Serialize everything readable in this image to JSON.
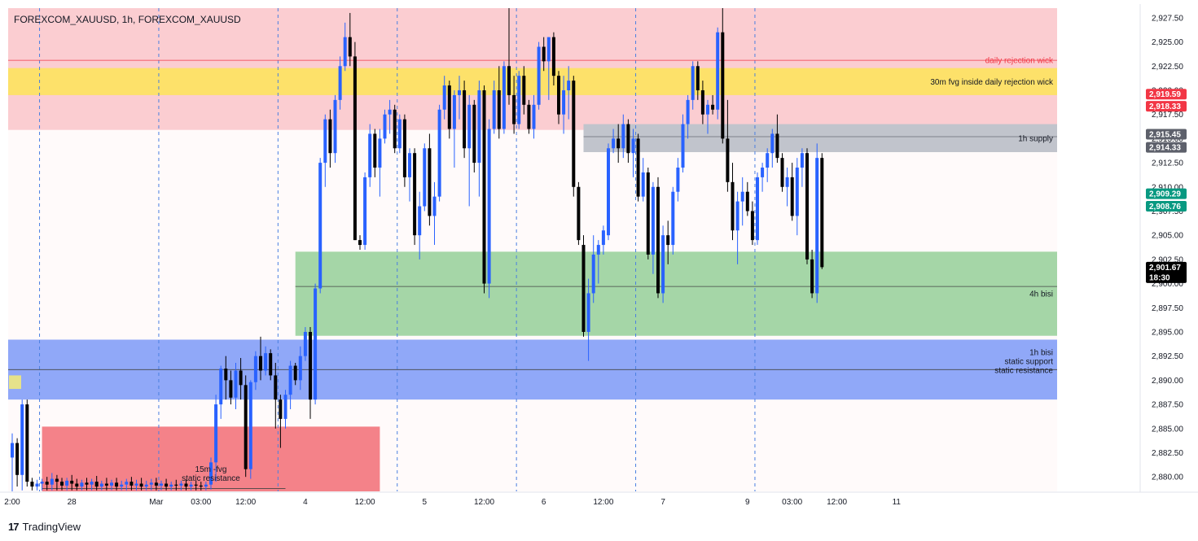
{
  "header": {
    "symbol_title": "FOREXCOM_XAUUSD, 1h, FOREXCOM_XAUUSD"
  },
  "brand": {
    "logo_glyph": "17",
    "name": "TradingView"
  },
  "colors": {
    "bull": "#2962ff",
    "bear": "#000000",
    "rejection_zone": "#fbcdd1",
    "fvg_30m": "#fde16a",
    "supply_1h": "#c1c4cc",
    "bisi_4h": "#a5d6a7",
    "bisi_1h": "#90a8f8",
    "fvg_15m": "#f48289",
    "background": "#fffafa",
    "dashed_separator": "#4a7fe0"
  },
  "chart_data": {
    "type": "candlestick",
    "symbol": "FOREXCOM_XAUUSD",
    "timeframe": "1h",
    "y_axis": {
      "ticks": [
        "2,927.50",
        "2,925.00",
        "2,922.50",
        "2,920.00",
        "2,917.50",
        "2,915.00",
        "2,912.50",
        "2,910.00",
        "2,907.50",
        "2,905.00",
        "2,902.50",
        "2,900.00",
        "2,897.50",
        "2,895.00",
        "2,892.50",
        "2,890.00",
        "2,887.50",
        "2,885.00",
        "2,882.50",
        "2,880.00"
      ],
      "range": [
        2878.5,
        2928.5
      ]
    },
    "x_axis": {
      "ticks": [
        {
          "label": "2:00",
          "i": 0
        },
        {
          "label": "28",
          "i": 12
        },
        {
          "label": "Mar",
          "i": 29
        },
        {
          "label": "03:00",
          "i": 38
        },
        {
          "label": "12:00",
          "i": 47
        },
        {
          "label": "4",
          "i": 59
        },
        {
          "label": "12:00",
          "i": 71
        },
        {
          "label": "5",
          "i": 83
        },
        {
          "label": "12:00",
          "i": 95
        },
        {
          "label": "6",
          "i": 107
        },
        {
          "label": "12:00",
          "i": 119
        },
        {
          "label": "7",
          "i": 131
        },
        {
          "label": "9",
          "i": 148
        },
        {
          "label": "03:00",
          "i": 157
        },
        {
          "label": "12:00",
          "i": 166
        },
        {
          "label": "11",
          "i": 178
        }
      ],
      "session_separators": [
        5,
        29,
        53,
        77,
        101,
        125,
        149
      ]
    },
    "zones": [
      {
        "name": "rejection-zone",
        "label": "",
        "top": 2928.5,
        "bottom": 2915.9,
        "color": "#fbcdd1",
        "x_start": 0,
        "x_end": "right",
        "label_align": "right"
      },
      {
        "name": "fvg-30m",
        "label": "30m fvg inside daily rejection wick",
        "top": 2922.3,
        "bottom": 2919.5,
        "color": "#fde16a",
        "x_start": 0,
        "x_end": "right",
        "label_align": "right"
      },
      {
        "name": "supply-1h",
        "label": "1h supply",
        "top": 2916.5,
        "bottom": 2913.6,
        "color": "#c1c4cc",
        "x_start": 115,
        "x_end": "right",
        "label_align": "right"
      },
      {
        "name": "bisi-4h",
        "label": "4h bisi",
        "top": 2903.3,
        "bottom": 2894.6,
        "color": "#a5d6a7",
        "x_start": 57,
        "x_end": "right",
        "label_align": "right"
      },
      {
        "name": "bisi-1h",
        "label": "1h bisi\nstatic support\nstatic resistance",
        "top": 2894.2,
        "bottom": 2888.0,
        "color": "#90a8f8",
        "x_start": 0,
        "x_end": "right",
        "label_align": "right"
      },
      {
        "name": "fvg-15m",
        "label": "15m -fvg\nstatic resistance",
        "top": 2885.2,
        "bottom": 2878.5,
        "color": "#f48289",
        "x_start": 6,
        "x_end": 74,
        "label_align": "center"
      }
    ],
    "levels": [
      {
        "name": "daily-rejection-wick",
        "label": "daily rejection wick",
        "price": 2923.1,
        "color": "#f23645",
        "x_start": 0
      },
      {
        "name": "supply-mid",
        "label": "",
        "price": 2915.2,
        "color": "#6a6d78",
        "x_start": 115
      },
      {
        "name": "bisi-4h-mid",
        "label": "",
        "price": 2899.7,
        "color": "#444444",
        "x_start": 57
      },
      {
        "name": "bisi-1h-mid",
        "label": "",
        "price": 2891.1,
        "color": "#444444",
        "x_start": 0
      },
      {
        "name": "fvg-15m-base",
        "label": "",
        "price": 2878.8,
        "color": "#444444",
        "x_start": 6,
        "x_end": 55
      }
    ],
    "price_tags": [
      {
        "value": "2,919.59",
        "price": 2919.6,
        "color": "#f23645"
      },
      {
        "value": "2,918.33",
        "price": 2918.35,
        "color": "#f23645"
      },
      {
        "value": "2,915.45",
        "price": 2915.45,
        "color": "#5d606b"
      },
      {
        "value": "2,914.33",
        "price": 2914.1,
        "color": "#5d606b"
      },
      {
        "value": "2,909.29",
        "price": 2909.3,
        "color": "#089981"
      },
      {
        "value": "2,908.76",
        "price": 2908.0,
        "color": "#089981"
      },
      {
        "value": "2,901.67",
        "price": 2901.7,
        "color": "#000000",
        "sub": "18:30"
      }
    ],
    "candles": [
      [
        2882.0,
        2884.5,
        2878.5,
        2883.5
      ],
      [
        2883.5,
        2884.0,
        2879.0,
        2880.2
      ],
      [
        2880.2,
        2888.0,
        2878.6,
        2887.5
      ],
      [
        2887.5,
        2888.0,
        2879.0,
        2879.5
      ],
      [
        2879.5,
        2879.9,
        2878.6,
        2879.0
      ],
      [
        2879.0,
        2879.7,
        2878.6,
        2879.3
      ],
      [
        2879.3,
        2879.8,
        2878.6,
        2879.5
      ],
      [
        2879.5,
        2880.0,
        2878.6,
        2879.2
      ],
      [
        2879.2,
        2880.4,
        2878.6,
        2879.8
      ],
      [
        2879.8,
        2880.2,
        2878.6,
        2879.5
      ],
      [
        2879.5,
        2879.9,
        2878.6,
        2879.1
      ],
      [
        2879.1,
        2879.9,
        2878.6,
        2879.6
      ],
      [
        2879.6,
        2880.2,
        2878.6,
        2879.3
      ],
      [
        2879.3,
        2879.8,
        2878.6,
        2879.0
      ],
      [
        2879.0,
        2879.7,
        2878.6,
        2879.4
      ],
      [
        2879.4,
        2879.9,
        2878.6,
        2879.2
      ],
      [
        2879.2,
        2879.8,
        2878.6,
        2879.5
      ],
      [
        2879.5,
        2880.1,
        2878.6,
        2879.0
      ],
      [
        2879.0,
        2879.6,
        2878.6,
        2879.3
      ],
      [
        2879.3,
        2879.9,
        2878.6,
        2879.1
      ],
      [
        2879.1,
        2879.7,
        2878.6,
        2879.4
      ],
      [
        2879.4,
        2879.9,
        2878.6,
        2879.0
      ],
      [
        2879.0,
        2879.6,
        2878.6,
        2879.2
      ],
      [
        2879.2,
        2879.8,
        2878.6,
        2879.5
      ],
      [
        2879.5,
        2880.0,
        2878.6,
        2879.1
      ],
      [
        2879.1,
        2879.7,
        2878.6,
        2879.3
      ],
      [
        2879.3,
        2879.9,
        2878.6,
        2879.0
      ],
      [
        2879.0,
        2879.6,
        2878.6,
        2879.2
      ],
      [
        2879.2,
        2879.8,
        2878.6,
        2879.4
      ],
      [
        2879.4,
        2879.9,
        2878.6,
        2879.1
      ],
      [
        2879.1,
        2879.6,
        2878.6,
        2879.3
      ],
      [
        2879.3,
        2879.8,
        2878.6,
        2879.0
      ],
      [
        2879.0,
        2879.5,
        2878.6,
        2879.2
      ],
      [
        2879.2,
        2879.7,
        2878.6,
        2879.1
      ],
      [
        2879.1,
        2879.6,
        2878.6,
        2879.3
      ],
      [
        2879.3,
        2879.7,
        2878.6,
        2879.0
      ],
      [
        2879.0,
        2879.5,
        2878.6,
        2879.2
      ],
      [
        2879.2,
        2879.6,
        2878.6,
        2879.1
      ],
      [
        2879.1,
        2879.5,
        2878.6,
        2879.0
      ],
      [
        2879.0,
        2879.5,
        2878.6,
        2879.2
      ],
      [
        2879.2,
        2882.0,
        2878.7,
        2881.5
      ],
      [
        2881.5,
        2888.5,
        2879.5,
        2887.5
      ],
      [
        2887.5,
        2891.5,
        2886.0,
        2891.2
      ],
      [
        2891.2,
        2892.5,
        2888.0,
        2890.0
      ],
      [
        2890.0,
        2891.0,
        2887.5,
        2888.2
      ],
      [
        2888.2,
        2891.8,
        2887.0,
        2891.0
      ],
      [
        2891.0,
        2892.3,
        2888.0,
        2889.5
      ],
      [
        2889.5,
        2890.5,
        2880.0,
        2880.8
      ],
      [
        2880.8,
        2890.0,
        2879.8,
        2889.8
      ],
      [
        2889.8,
        2893.0,
        2889.0,
        2892.5
      ],
      [
        2892.5,
        2894.5,
        2890.0,
        2891.0
      ],
      [
        2891.0,
        2893.5,
        2890.5,
        2892.8
      ],
      [
        2892.8,
        2893.2,
        2890.0,
        2890.5
      ],
      [
        2890.5,
        2891.8,
        2885.0,
        2888.0
      ],
      [
        2888.0,
        2888.5,
        2883.0,
        2886.0
      ],
      [
        2886.0,
        2889.0,
        2885.0,
        2888.5
      ],
      [
        2888.5,
        2892.0,
        2887.0,
        2891.5
      ],
      [
        2891.5,
        2891.8,
        2889.5,
        2890.0
      ],
      [
        2890.0,
        2893.5,
        2889.0,
        2892.5
      ],
      [
        2892.5,
        2895.5,
        2892.0,
        2895.0
      ],
      [
        2895.0,
        2895.5,
        2886.0,
        2888.0
      ],
      [
        2888.0,
        2900.0,
        2887.5,
        2899.5
      ],
      [
        2899.5,
        2913.0,
        2899.0,
        2912.5
      ],
      [
        2912.5,
        2917.5,
        2910.0,
        2917.0
      ],
      [
        2917.0,
        2918.0,
        2912.0,
        2913.5
      ],
      [
        2913.5,
        2919.5,
        2912.5,
        2919.0
      ],
      [
        2919.0,
        2923.5,
        2918.0,
        2922.5
      ],
      [
        2922.5,
        2927.0,
        2922.0,
        2925.5
      ],
      [
        2925.5,
        2928.0,
        2922.5,
        2923.5
      ],
      [
        2923.5,
        2925.0,
        2904.5,
        2904.5
      ],
      [
        2904.5,
        2905.0,
        2903.5,
        2904.0
      ],
      [
        2904.0,
        2911.5,
        2903.5,
        2911.0
      ],
      [
        2911.0,
        2916.5,
        2910.0,
        2915.5
      ],
      [
        2915.5,
        2916.0,
        2911.0,
        2912.0
      ],
      [
        2912.0,
        2916.0,
        2909.0,
        2915.0
      ],
      [
        2915.0,
        2918.0,
        2914.5,
        2917.5
      ],
      [
        2917.5,
        2919.0,
        2915.5,
        2918.0
      ],
      [
        2918.0,
        2918.5,
        2913.5,
        2914.0
      ],
      [
        2914.0,
        2917.5,
        2913.5,
        2917.0
      ],
      [
        2917.0,
        2917.5,
        2910.0,
        2911.0
      ],
      [
        2911.0,
        2914.0,
        2908.5,
        2913.5
      ],
      [
        2913.5,
        2914.0,
        2904.0,
        2905.0
      ],
      [
        2905.0,
        2909.5,
        2902.5,
        2908.0
      ],
      [
        2908.0,
        2914.5,
        2907.5,
        2914.0
      ],
      [
        2914.0,
        2915.5,
        2906.0,
        2907.0
      ],
      [
        2907.0,
        2910.5,
        2904.0,
        2909.0
      ],
      [
        2909.0,
        2918.5,
        2908.5,
        2918.0
      ],
      [
        2918.0,
        2921.5,
        2917.0,
        2920.5
      ],
      [
        2920.5,
        2921.0,
        2915.0,
        2916.0
      ],
      [
        2916.0,
        2920.0,
        2912.0,
        2919.5
      ],
      [
        2919.5,
        2921.5,
        2917.0,
        2920.0
      ],
      [
        2920.0,
        2921.0,
        2913.0,
        2914.0
      ],
      [
        2914.0,
        2919.5,
        2908.0,
        2918.5
      ],
      [
        2918.5,
        2919.0,
        2911.5,
        2912.5
      ],
      [
        2912.5,
        2921.0,
        2909.0,
        2920.0
      ],
      [
        2920.0,
        2920.5,
        2899.0,
        2900.0
      ],
      [
        2900.0,
        2917.0,
        2898.5,
        2916.0
      ],
      [
        2916.0,
        2921.0,
        2915.5,
        2920.0
      ],
      [
        2920.0,
        2922.5,
        2915.0,
        2916.0
      ],
      [
        2916.0,
        2923.0,
        2915.5,
        2922.5
      ],
      [
        2922.5,
        2928.5,
        2918.5,
        2919.5
      ],
      [
        2919.5,
        2921.5,
        2915.5,
        2916.5
      ],
      [
        2916.5,
        2922.0,
        2916.0,
        2921.5
      ],
      [
        2921.5,
        2922.5,
        2917.5,
        2918.5
      ],
      [
        2918.5,
        2919.0,
        2915.5,
        2916.0
      ],
      [
        2916.0,
        2919.5,
        2915.0,
        2918.5
      ],
      [
        2918.5,
        2925.0,
        2918.0,
        2924.5
      ],
      [
        2924.5,
        2925.5,
        2922.0,
        2923.0
      ],
      [
        2923.0,
        2925.5,
        2919.0,
        2925.5
      ],
      [
        2925.5,
        2926.0,
        2920.5,
        2921.5
      ],
      [
        2921.5,
        2922.0,
        2916.5,
        2917.5
      ],
      [
        2917.5,
        2921.5,
        2915.5,
        2920.0
      ],
      [
        2920.0,
        2922.5,
        2917.0,
        2921.0
      ],
      [
        2921.0,
        2921.5,
        2909.0,
        2910.0
      ],
      [
        2910.0,
        2910.5,
        2904.0,
        2904.5
      ],
      [
        2904.0,
        2905.0,
        2894.5,
        2895.0
      ],
      [
        2895.0,
        2900.5,
        2892.0,
        2899.0
      ],
      [
        2899.0,
        2905.0,
        2898.0,
        2903.0
      ],
      [
        2903.0,
        2904.5,
        2900.0,
        2904.0
      ],
      [
        2904.0,
        2906.0,
        2903.0,
        2905.5
      ],
      [
        2905.0,
        2914.5,
        2904.5,
        2914.0
      ],
      [
        2914.0,
        2916.0,
        2913.5,
        2915.0
      ],
      [
        2915.0,
        2916.5,
        2912.5,
        2914.0
      ],
      [
        2914.0,
        2917.5,
        2913.0,
        2916.5
      ],
      [
        2916.5,
        2917.0,
        2912.5,
        2913.5
      ],
      [
        2913.5,
        2916.0,
        2911.0,
        2915.0
      ],
      [
        2915.0,
        2915.5,
        2908.5,
        2909.0
      ],
      [
        2909.0,
        2913.0,
        2908.5,
        2911.5
      ],
      [
        2911.5,
        2912.0,
        2902.5,
        2903.0
      ],
      [
        2903.0,
        2910.5,
        2901.0,
        2910.0
      ],
      [
        2910.0,
        2911.0,
        2898.5,
        2899.0
      ],
      [
        2899.0,
        2906.0,
        2898.0,
        2905.0
      ],
      [
        2905.0,
        2906.5,
        2902.0,
        2904.0
      ],
      [
        2904.0,
        2910.0,
        2903.0,
        2909.5
      ],
      [
        2909.5,
        2913.0,
        2908.5,
        2912.0
      ],
      [
        2912.0,
        2917.5,
        2911.5,
        2916.5
      ],
      [
        2916.5,
        2919.5,
        2915.0,
        2919.0
      ],
      [
        2919.0,
        2923.0,
        2918.0,
        2922.5
      ],
      [
        2922.5,
        2923.0,
        2919.0,
        2920.0
      ],
      [
        2920.0,
        2921.0,
        2916.5,
        2917.5
      ],
      [
        2917.5,
        2919.0,
        2915.5,
        2918.5
      ],
      [
        2918.5,
        2919.5,
        2917.5,
        2918.0
      ],
      [
        2918.0,
        2926.5,
        2917.0,
        2926.0
      ],
      [
        2926.0,
        2928.5,
        2914.5,
        2915.0
      ],
      [
        2915.0,
        2919.0,
        2909.5,
        2910.5
      ],
      [
        2910.5,
        2912.5,
        2904.5,
        2905.5
      ],
      [
        2905.5,
        2909.5,
        2902.0,
        2908.5
      ],
      [
        2908.5,
        2911.0,
        2906.0,
        2909.5
      ],
      [
        2909.5,
        2910.5,
        2907.0,
        2907.5
      ],
      [
        2907.5,
        2908.5,
        2904.0,
        2904.5
      ],
      [
        2904.5,
        2911.5,
        2904.0,
        2911.0
      ],
      [
        2911.0,
        2912.5,
        2909.5,
        2912.0
      ],
      [
        2912.0,
        2914.0,
        2910.5,
        2913.5
      ],
      [
        2913.5,
        2916.0,
        2912.0,
        2915.5
      ],
      [
        2915.5,
        2917.5,
        2912.5,
        2913.0
      ],
      [
        2913.0,
        2913.5,
        2909.5,
        2910.0
      ],
      [
        2910.0,
        2912.0,
        2908.0,
        2911.0
      ],
      [
        2911.0,
        2912.5,
        2906.5,
        2907.0
      ],
      [
        2907.0,
        2913.0,
        2905.0,
        2912.0
      ],
      [
        2912.0,
        2914.0,
        2910.0,
        2913.5
      ],
      [
        2913.5,
        2914.0,
        2902.0,
        2902.5
      ],
      [
        2902.5,
        2903.5,
        2898.5,
        2899.0
      ],
      [
        2899.0,
        2914.5,
        2898.0,
        2913.0
      ],
      [
        2913.0,
        2913.5,
        2901.5,
        2901.7
      ]
    ]
  }
}
